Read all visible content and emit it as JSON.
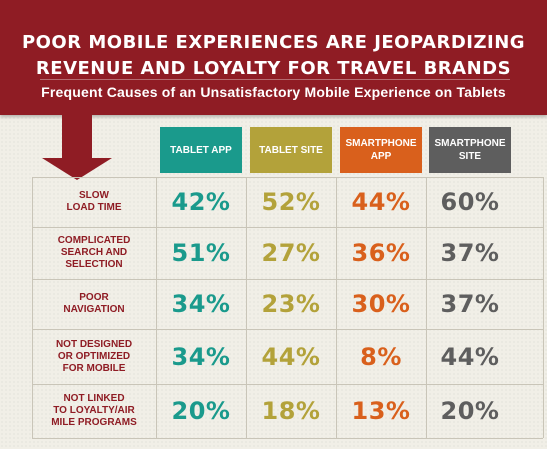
{
  "header": {
    "title_line1": "POOR MOBILE EXPERIENCES ARE JEOPARDIZING",
    "title_line2": "REVENUE AND LOYALTY FOR TRAVEL BRANDS",
    "subtitle": "Frequent Causes of an Unsatisfactory Mobile Experience on Tablets"
  },
  "colors": {
    "banner": "#8f1c24",
    "tablet_app": "#1a9a8c",
    "tablet_site": "#b3a23a",
    "smartphone_app": "#d9601c",
    "smartphone_site": "#5e5e5e"
  },
  "chart_data": {
    "type": "table",
    "title": "POOR MOBILE EXPERIENCES ARE JEOPARDIZING REVENUE AND LOYALTY FOR TRAVEL BRANDS",
    "subtitle": "Frequent Causes of an Unsatisfactory Mobile Experience on Tablets",
    "columns": [
      "TABLET APP",
      "TABLET SITE",
      "SMARTPHONE\nAPP",
      "SMARTPHONE\nSITE"
    ],
    "rows": [
      {
        "label": "SLOW\nLOAD TIME",
        "values": [
          "42%",
          "52%",
          "44%",
          "60%"
        ]
      },
      {
        "label": "COMPLICATED\nSEARCH AND\nSELECTION",
        "values": [
          "51%",
          "27%",
          "36%",
          "37%"
        ]
      },
      {
        "label": "POOR\nNAVIGATION",
        "values": [
          "34%",
          "23%",
          "30%",
          "37%"
        ]
      },
      {
        "label": "NOT DESIGNED\nOR OPTIMIZED\nFOR MOBILE",
        "values": [
          "34%",
          "44%",
          "8%",
          "44%"
        ]
      },
      {
        "label": "NOT LINKED\nTO LOYALTY/AIR\nMILE PROGRAMS",
        "values": [
          "20%",
          "18%",
          "13%",
          "20%"
        ]
      }
    ]
  }
}
